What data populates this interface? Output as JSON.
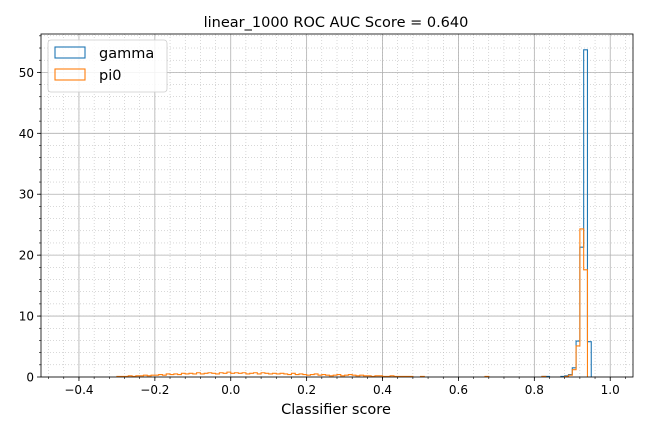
{
  "chart_data": {
    "type": "histogram",
    "title": "linear_1000 ROC AUC Score = 0.640",
    "xlabel": "Classifier score",
    "ylabel": "",
    "xlim": [
      -0.5,
      1.06
    ],
    "ylim": [
      0,
      56.3
    ],
    "xticks": [
      -0.4,
      -0.2,
      0.0,
      0.2,
      0.4,
      0.6,
      0.8,
      1.0
    ],
    "xtick_labels": [
      "−0.4",
      "−0.2",
      "0.0",
      "0.2",
      "0.4",
      "0.6",
      "0.8",
      "1.0"
    ],
    "yticks": [
      0,
      10,
      20,
      30,
      40,
      50
    ],
    "ytick_labels": [
      "0",
      "10",
      "20",
      "30",
      "40",
      "50"
    ],
    "grid": "major and minor",
    "legend_position": "top-left",
    "bin_width": 0.01,
    "series": [
      {
        "name": "gamma",
        "color": "#1f77b4",
        "bins": [
          {
            "x": 0.82,
            "y": 0.1
          },
          {
            "x": 0.83,
            "y": 0.1
          },
          {
            "x": 0.87,
            "y": 0.1
          },
          {
            "x": 0.88,
            "y": 0.2
          },
          {
            "x": 0.89,
            "y": 0.4
          },
          {
            "x": 0.9,
            "y": 1.5
          },
          {
            "x": 0.91,
            "y": 5.9
          },
          {
            "x": 0.92,
            "y": 21.3
          },
          {
            "x": 0.93,
            "y": 53.7
          },
          {
            "x": 0.94,
            "y": 5.8
          }
        ]
      },
      {
        "name": "pi0",
        "color": "#ff7f0e",
        "bins": [
          {
            "x": -0.3,
            "y": 0.1
          },
          {
            "x": -0.29,
            "y": 0.1
          },
          {
            "x": -0.28,
            "y": 0.1
          },
          {
            "x": -0.27,
            "y": 0.2
          },
          {
            "x": -0.26,
            "y": 0.1
          },
          {
            "x": -0.25,
            "y": 0.2
          },
          {
            "x": -0.24,
            "y": 0.2
          },
          {
            "x": -0.23,
            "y": 0.3
          },
          {
            "x": -0.22,
            "y": 0.2
          },
          {
            "x": -0.21,
            "y": 0.3
          },
          {
            "x": -0.2,
            "y": 0.3
          },
          {
            "x": -0.19,
            "y": 0.4
          },
          {
            "x": -0.18,
            "y": 0.3
          },
          {
            "x": -0.17,
            "y": 0.5
          },
          {
            "x": -0.16,
            "y": 0.4
          },
          {
            "x": -0.15,
            "y": 0.5
          },
          {
            "x": -0.14,
            "y": 0.4
          },
          {
            "x": -0.13,
            "y": 0.6
          },
          {
            "x": -0.12,
            "y": 0.5
          },
          {
            "x": -0.11,
            "y": 0.6
          },
          {
            "x": -0.1,
            "y": 0.5
          },
          {
            "x": -0.09,
            "y": 0.7
          },
          {
            "x": -0.08,
            "y": 0.5
          },
          {
            "x": -0.07,
            "y": 0.6
          },
          {
            "x": -0.06,
            "y": 0.7
          },
          {
            "x": -0.05,
            "y": 0.6
          },
          {
            "x": -0.04,
            "y": 0.5
          },
          {
            "x": -0.03,
            "y": 0.7
          },
          {
            "x": -0.02,
            "y": 0.6
          },
          {
            "x": -0.01,
            "y": 0.8
          },
          {
            "x": 0.0,
            "y": 0.6
          },
          {
            "x": 0.01,
            "y": 0.7
          },
          {
            "x": 0.02,
            "y": 0.6
          },
          {
            "x": 0.03,
            "y": 0.7
          },
          {
            "x": 0.04,
            "y": 0.5
          },
          {
            "x": 0.05,
            "y": 0.6
          },
          {
            "x": 0.06,
            "y": 0.7
          },
          {
            "x": 0.07,
            "y": 0.5
          },
          {
            "x": 0.08,
            "y": 0.7
          },
          {
            "x": 0.09,
            "y": 0.6
          },
          {
            "x": 0.1,
            "y": 0.5
          },
          {
            "x": 0.11,
            "y": 0.6
          },
          {
            "x": 0.12,
            "y": 0.5
          },
          {
            "x": 0.13,
            "y": 0.6
          },
          {
            "x": 0.14,
            "y": 0.5
          },
          {
            "x": 0.15,
            "y": 0.4
          },
          {
            "x": 0.16,
            "y": 0.6
          },
          {
            "x": 0.17,
            "y": 0.4
          },
          {
            "x": 0.18,
            "y": 0.5
          },
          {
            "x": 0.19,
            "y": 0.4
          },
          {
            "x": 0.2,
            "y": 0.3
          },
          {
            "x": 0.21,
            "y": 0.4
          },
          {
            "x": 0.22,
            "y": 0.5
          },
          {
            "x": 0.23,
            "y": 0.3
          },
          {
            "x": 0.24,
            "y": 0.4
          },
          {
            "x": 0.25,
            "y": 0.3
          },
          {
            "x": 0.26,
            "y": 0.2
          },
          {
            "x": 0.27,
            "y": 0.3
          },
          {
            "x": 0.28,
            "y": 0.4
          },
          {
            "x": 0.29,
            "y": 0.2
          },
          {
            "x": 0.3,
            "y": 0.3
          },
          {
            "x": 0.31,
            "y": 0.4
          },
          {
            "x": 0.32,
            "y": 0.3
          },
          {
            "x": 0.33,
            "y": 0.2
          },
          {
            "x": 0.34,
            "y": 0.3
          },
          {
            "x": 0.35,
            "y": 0.2
          },
          {
            "x": 0.36,
            "y": 0.2
          },
          {
            "x": 0.37,
            "y": 0.1
          },
          {
            "x": 0.38,
            "y": 0.2
          },
          {
            "x": 0.39,
            "y": 0.2
          },
          {
            "x": 0.4,
            "y": 0.1
          },
          {
            "x": 0.41,
            "y": 0.1
          },
          {
            "x": 0.42,
            "y": 0.2
          },
          {
            "x": 0.43,
            "y": 0.1
          },
          {
            "x": 0.44,
            "y": 0.1
          },
          {
            "x": 0.45,
            "y": 0.1
          },
          {
            "x": 0.46,
            "y": 0.1
          },
          {
            "x": 0.47,
            "y": 0.1
          },
          {
            "x": 0.5,
            "y": 0.1
          },
          {
            "x": 0.67,
            "y": 0.1
          },
          {
            "x": 0.82,
            "y": 0.1
          },
          {
            "x": 0.88,
            "y": 0.1
          },
          {
            "x": 0.89,
            "y": 0.3
          },
          {
            "x": 0.9,
            "y": 1.2
          },
          {
            "x": 0.91,
            "y": 5.1
          },
          {
            "x": 0.92,
            "y": 24.3
          },
          {
            "x": 0.93,
            "y": 17.6
          }
        ]
      }
    ]
  }
}
